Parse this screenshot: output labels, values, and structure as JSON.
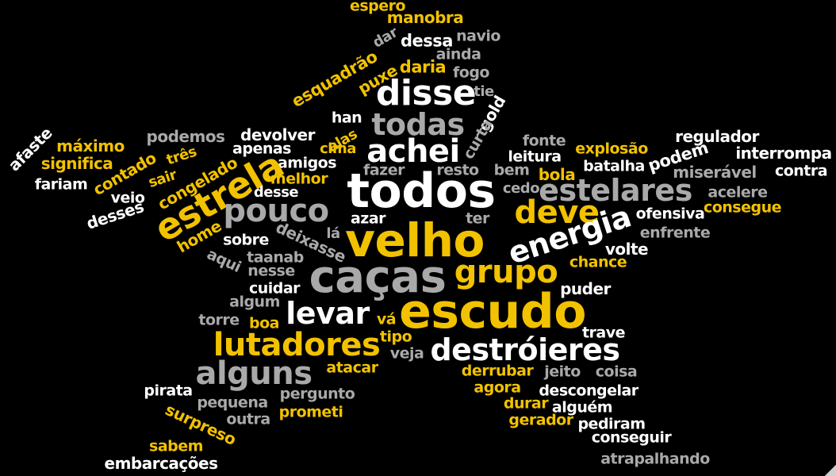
{
  "colors": {
    "background": "#000000",
    "yellow": "#f2c200",
    "gray": "#a9a9a9",
    "white": "#ffffff"
  },
  "words": [
    "espero",
    "manobra",
    "dar",
    "dessa",
    "navio",
    "ainda",
    "esquadrão",
    "daria",
    "puxe",
    "fogo",
    "disse",
    "tie",
    "gold",
    "todas",
    "curta",
    "han",
    "alas",
    "podemos",
    "devolver",
    "afaste",
    "máximo",
    "significa",
    "três",
    "contado",
    "apenas",
    "cima",
    "amigos",
    "achei",
    "fonte",
    "leitura",
    "explosão",
    "regulador",
    "podem",
    "interrompa",
    "fazer",
    "resto",
    "bem",
    "bola",
    "batalha",
    "miserável",
    "contra",
    "fariam",
    "sair",
    "congelado",
    "estrela",
    "melhor",
    "todos",
    "estelares",
    "cedo",
    "acelere",
    "veio",
    "desse",
    "pouco",
    "desses",
    "deve",
    "consegue",
    "ofensiva",
    "azar",
    "ter",
    "energia",
    "home",
    "sobre",
    "deixasse",
    "lá",
    "enfrente",
    "aqui",
    "taanab",
    "velho",
    "grupo",
    "volte",
    "chance",
    "nesse",
    "caças",
    "cuidar",
    "puder",
    "algum",
    "levar",
    "escudo",
    "torre",
    "boa",
    "vá",
    "trave",
    "lutadores",
    "tipo",
    "destróieres",
    "veja",
    "alguns",
    "atacar",
    "derrubar",
    "jeito",
    "coisa",
    "pirata",
    "pergunto",
    "agora",
    "descongelar",
    "pequena",
    "durar",
    "alguém",
    "surpreso",
    "outra",
    "prometi",
    "gerador",
    "pediram",
    "conseguir",
    "sabem",
    "embarcações",
    "atrapalhando"
  ]
}
